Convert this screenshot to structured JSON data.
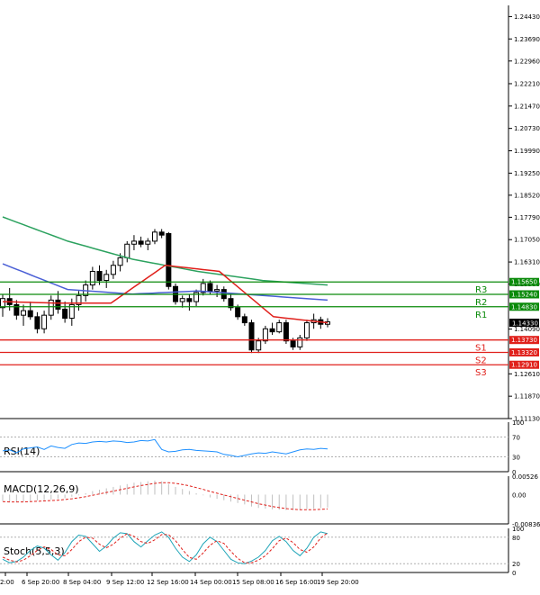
{
  "chart_data": {
    "type": "candlestick",
    "price_panel": {
      "y_ticks": [
        "1.24430",
        "1.23690",
        "1.22960",
        "1.22210",
        "1.21470",
        "1.20730",
        "1.19990",
        "1.19250",
        "1.18520",
        "1.17790",
        "1.17050",
        "1.16310",
        "1.15580",
        "1.14090",
        "1.12610",
        "1.11870",
        "1.11130"
      ],
      "ylim": [
        1.1113,
        1.248
      ],
      "candles": [
        [
          1.148,
          1.1525,
          1.145,
          1.151
        ],
        [
          1.151,
          1.1545,
          1.147,
          1.149
        ],
        [
          1.149,
          1.1505,
          1.144,
          1.1455
        ],
        [
          1.1455,
          1.149,
          1.142,
          1.147
        ],
        [
          1.147,
          1.15,
          1.144,
          1.145
        ],
        [
          1.145,
          1.1465,
          1.1395,
          1.141
        ],
        [
          1.141,
          1.147,
          1.1395,
          1.1455
        ],
        [
          1.1455,
          1.152,
          1.144,
          1.1505
        ],
        [
          1.1505,
          1.1535,
          1.146,
          1.1475
        ],
        [
          1.1475,
          1.15,
          1.143,
          1.1445
        ],
        [
          1.1445,
          1.151,
          1.142,
          1.149
        ],
        [
          1.149,
          1.1535,
          1.147,
          1.152
        ],
        [
          1.152,
          1.157,
          1.15,
          1.1555
        ],
        [
          1.1555,
          1.1615,
          1.154,
          1.16
        ],
        [
          1.16,
          1.162,
          1.1555,
          1.157
        ],
        [
          1.157,
          1.1605,
          1.1545,
          1.159
        ],
        [
          1.159,
          1.1635,
          1.1575,
          1.162
        ],
        [
          1.162,
          1.166,
          1.16,
          1.1645
        ],
        [
          1.1645,
          1.17,
          1.163,
          1.169
        ],
        [
          1.169,
          1.172,
          1.167,
          1.17
        ],
        [
          1.17,
          1.1715,
          1.168,
          1.169
        ],
        [
          1.169,
          1.171,
          1.167,
          1.17
        ],
        [
          1.17,
          1.174,
          1.169,
          1.173
        ],
        [
          1.173,
          1.174,
          1.171,
          1.172
        ],
        [
          1.1725,
          1.173,
          1.154,
          1.155
        ],
        [
          1.155,
          1.156,
          1.149,
          1.15
        ],
        [
          1.15,
          1.152,
          1.148,
          1.151
        ],
        [
          1.151,
          1.1525,
          1.147,
          1.15
        ],
        [
          1.15,
          1.154,
          1.1485,
          1.153
        ],
        [
          1.153,
          1.1575,
          1.152,
          1.156
        ],
        [
          1.156,
          1.157,
          1.1525,
          1.1535
        ],
        [
          1.1535,
          1.1555,
          1.1515,
          1.154
        ],
        [
          1.154,
          1.155,
          1.15,
          1.151
        ],
        [
          1.151,
          1.1525,
          1.147,
          1.148
        ],
        [
          1.148,
          1.149,
          1.144,
          1.145
        ],
        [
          1.145,
          1.146,
          1.142,
          1.143
        ],
        [
          1.143,
          1.144,
          1.133,
          1.134
        ],
        [
          1.134,
          1.138,
          1.133,
          1.137
        ],
        [
          1.137,
          1.142,
          1.136,
          1.141
        ],
        [
          1.141,
          1.143,
          1.139,
          1.14
        ],
        [
          1.14,
          1.144,
          1.1395,
          1.143
        ],
        [
          1.143,
          1.144,
          1.136,
          1.137
        ],
        [
          1.137,
          1.138,
          1.134,
          1.135
        ],
        [
          1.135,
          1.139,
          1.134,
          1.138
        ],
        [
          1.138,
          1.144,
          1.137,
          1.143
        ],
        [
          1.143,
          1.146,
          1.141,
          1.144
        ],
        [
          1.144,
          1.145,
          1.141,
          1.1425
        ],
        [
          1.1425,
          1.1445,
          1.1415,
          1.1433
        ]
      ],
      "moving_averages": [
        {
          "color": "#2ca25f",
          "values": [
            1.178,
            1.17,
            1.164,
            1.16,
            1.157,
            1.1555
          ]
        },
        {
          "color": "#4a5fd6",
          "values": [
            1.1625,
            1.154,
            1.1525,
            1.1535,
            1.152,
            1.1505
          ]
        },
        {
          "color": "#e0201b",
          "values": [
            1.15,
            1.1495,
            1.1495,
            1.162,
            1.16,
            1.145,
            1.143
          ]
        }
      ],
      "levels": [
        {
          "tag": "1.15650",
          "value": 1.1565,
          "label": "R3",
          "color": "#0a8a0a"
        },
        {
          "tag": "1.15240",
          "value": 1.1524,
          "label": "R2",
          "color": "#0a8a0a"
        },
        {
          "tag": "1.14830",
          "value": 1.1483,
          "label": "R1",
          "color": "#0a8a0a"
        },
        {
          "tag": "1.13730",
          "value": 1.1373,
          "label": "S1",
          "color": "#e0201b"
        },
        {
          "tag": "1.13320",
          "value": 1.1332,
          "label": "S2",
          "color": "#e0201b"
        },
        {
          "tag": "1.12910",
          "value": 1.1291,
          "label": "S3",
          "color": "#e0201b"
        }
      ],
      "current_price": "1.14330"
    },
    "rsi_panel": {
      "title": "RSI(14)",
      "y_ticks": [
        "100",
        "70",
        "30",
        "0"
      ],
      "values": [
        42,
        44,
        38,
        46,
        48,
        50,
        45,
        52,
        49,
        47,
        55,
        58,
        57,
        60,
        61,
        60,
        62,
        61,
        59,
        60,
        63,
        62,
        65,
        45,
        40,
        41,
        44,
        45,
        43,
        42,
        41,
        40,
        35,
        33,
        30,
        33,
        36,
        38,
        37,
        40,
        38,
        36,
        40,
        44,
        46,
        45,
        47,
        46
      ]
    },
    "macd_panel": {
      "title": "MACD(12,26,9)",
      "y_ticks": [
        "0.00526",
        "0.00",
        "-0.008361"
      ],
      "histogram": [
        -0.0018,
        -0.002,
        -0.0022,
        -0.002,
        -0.0018,
        -0.0017,
        -0.0016,
        -0.0014,
        -0.0012,
        -0.001,
        -0.0006,
        -0.0002,
        0.0004,
        0.001,
        0.0014,
        0.0018,
        0.0022,
        0.0026,
        0.003,
        0.0034,
        0.0036,
        0.0038,
        0.004,
        0.0038,
        0.003,
        0.0022,
        0.0016,
        0.001,
        0.0004,
        -0.0002,
        -0.0008,
        -0.0012,
        -0.0016,
        -0.002,
        -0.0024,
        -0.0028,
        -0.0034,
        -0.0038,
        -0.004,
        -0.0042,
        -0.0043,
        -0.0044,
        -0.0044,
        -0.0043,
        -0.0041,
        -0.004,
        -0.0038,
        -0.0037
      ],
      "signal": [
        -0.002,
        -0.0021,
        -0.0021,
        -0.0021,
        -0.002,
        -0.0019,
        -0.0018,
        -0.0017,
        -0.0016,
        -0.0014,
        -0.0012,
        -0.0009,
        -0.0006,
        -0.0002,
        0.0002,
        0.0006,
        0.001,
        0.0014,
        0.0018,
        0.0022,
        0.0026,
        0.0029,
        0.0032,
        0.0034,
        0.0034,
        0.0032,
        0.0029,
        0.0025,
        0.002,
        0.0015,
        0.0009,
        0.0004,
        -0.0001,
        -0.0006,
        -0.0011,
        -0.0016,
        -0.0021,
        -0.0026,
        -0.003,
        -0.0034,
        -0.0037,
        -0.004,
        -0.0042,
        -0.0043,
        -0.0043,
        -0.0043,
        -0.0042,
        -0.0041
      ]
    },
    "stoch_panel": {
      "title": "Stoch(5,5,3)",
      "y_ticks": [
        "100",
        "80",
        "20",
        "0"
      ],
      "main": [
        30,
        22,
        25,
        35,
        50,
        60,
        55,
        40,
        28,
        45,
        70,
        85,
        82,
        65,
        48,
        60,
        78,
        90,
        88,
        70,
        58,
        72,
        85,
        92,
        80,
        55,
        35,
        25,
        40,
        65,
        80,
        70,
        50,
        30,
        22,
        20,
        26,
        35,
        50,
        72,
        82,
        70,
        50,
        38,
        55,
        80,
        92,
        88
      ],
      "signal": [
        35,
        28,
        24,
        28,
        38,
        50,
        58,
        52,
        40,
        38,
        52,
        70,
        80,
        78,
        64,
        56,
        64,
        78,
        88,
        82,
        70,
        66,
        74,
        86,
        86,
        72,
        52,
        34,
        30,
        44,
        62,
        72,
        66,
        48,
        32,
        22,
        22,
        28,
        38,
        54,
        72,
        78,
        68,
        52,
        46,
        58,
        78,
        90
      ]
    },
    "x_ticks": [
      "2:00",
      "6 Sep 20:00",
      "8 Sep 04:00",
      "9 Sep 12:00",
      "12 Sep 16:00",
      "14 Sep 00:00",
      "15 Sep 08:00",
      "16 Sep 16:00",
      "19 Sep 20:00"
    ]
  }
}
